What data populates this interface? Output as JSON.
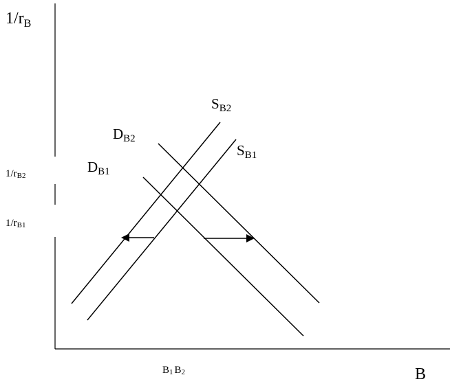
{
  "axes": {
    "y_main": "1/r",
    "y_main_sub": "B",
    "x_main": "B"
  },
  "y_ticks": [
    {
      "main": "1/r",
      "sub": "B2"
    },
    {
      "main": "1/r",
      "sub": "B1"
    }
  ],
  "x_ticks": {
    "b1_main": "B",
    "b1_sub": "1",
    "b2_main": "B",
    "b2_sub": "2"
  },
  "curves": {
    "S_B2": {
      "main": "S",
      "sub": "B2"
    },
    "S_B1": {
      "main": "S",
      "sub": "B1"
    },
    "D_B2": {
      "main": "D",
      "sub": "B2"
    },
    "D_B1": {
      "main": "D",
      "sub": "B1"
    }
  },
  "colors": {
    "line": "#000000",
    "background": "#ffffff"
  },
  "arrows": {
    "left_arrow_icon": "arrow-left-icon",
    "right_arrow_icon": "arrow-right-icon"
  }
}
